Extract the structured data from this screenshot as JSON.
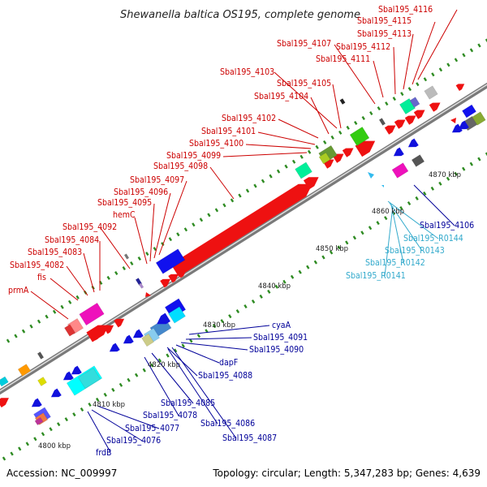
{
  "title": "Shewanella baltica OS195, complete genome",
  "footer": {
    "accession": "Accession: NC_009997",
    "summary": "Topology: circular; Length: 5,347,283 bp; Genes: 4,639"
  },
  "colors": {
    "forward_label": "#cc0000",
    "reverse_label": "#000099",
    "rna_label": "#33aacc",
    "backbone": "#999999",
    "tick": "#2e8b22"
  },
  "scale_labels": [
    "4800 kbp",
    "4810 kbp",
    "4820 kbp",
    "4830 kbp",
    "4840 kbp",
    "4850 kbp",
    "4860 kbp",
    "4870 kbp"
  ],
  "labels_forward": [
    "Sbal195_4116",
    "Sbal195_4115",
    "Sbal195_4113",
    "Sbal195_4112",
    "Sbal195_4107",
    "Sbal195_4111",
    "Sbal195_4103",
    "Sbal195_4105",
    "Sbal195_4104",
    "Sbal195_4102",
    "Sbal195_4101",
    "Sbal195_4100",
    "Sbal195_4099",
    "Sbal195_4098",
    "Sbal195_4097",
    "Sbal195_4096",
    "Sbal195_4095",
    "hemC",
    "Sbal195_4092",
    "Sbal195_4084",
    "Sbal195_4083",
    "Sbal195_4082",
    "fis",
    "prmA"
  ],
  "labels_reverse": [
    "cyaA",
    "Sbal195_4091",
    "Sbal195_4090",
    "dapF",
    "Sbal195_4088",
    "Sbal195_4085",
    "Sbal195_4078",
    "Sbal195_4086",
    "Sbal195_4077",
    "Sbal195_4087",
    "Sbal195_4076",
    "frdB",
    "Sbal195_4106"
  ],
  "labels_rna": [
    "Sbal195_R0144",
    "Sbal195_R0143",
    "Sbal195_R0142",
    "Sbal195_R0141"
  ]
}
